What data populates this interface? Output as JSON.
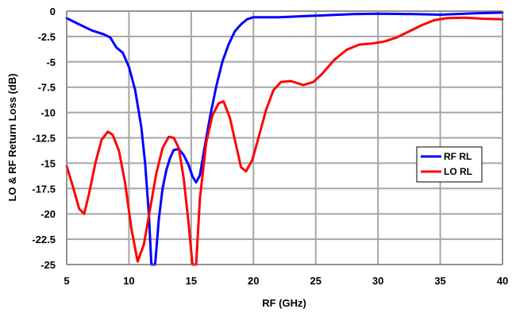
{
  "chart_data": {
    "type": "line",
    "title": "",
    "xlabel": "RF (GHz)",
    "ylabel": "LO & RF Return Loss (dB)",
    "xlim": [
      5,
      40
    ],
    "ylim": [
      -25,
      0
    ],
    "x_ticks": [
      5,
      10,
      15,
      20,
      25,
      30,
      35,
      40
    ],
    "x_tick_labels": [
      "5",
      "10",
      "15",
      "20",
      "25",
      "30",
      "35",
      "40"
    ],
    "y_ticks": [
      0,
      -2.5,
      -5,
      -7.5,
      -10,
      -12.5,
      -15,
      -17.5,
      -20,
      -22.5,
      -25
    ],
    "y_tick_labels": [
      "0",
      "-2.5",
      "-5",
      "-7.5",
      "-10",
      "-12.5",
      "-15",
      "-17.5",
      "-20",
      "-22.5",
      "-25"
    ],
    "grid": true,
    "legend_position": "right-middle",
    "series": [
      {
        "name": "RF RL",
        "color": "#0000ff",
        "points": [
          [
            5,
            -0.7
          ],
          [
            6,
            -1.3
          ],
          [
            7,
            -1.9
          ],
          [
            8,
            -2.3
          ],
          [
            8.5,
            -2.6
          ],
          [
            9,
            -3.6
          ],
          [
            9.5,
            -4.1
          ],
          [
            10,
            -5.5
          ],
          [
            10.5,
            -7.8
          ],
          [
            11,
            -11.5
          ],
          [
            11.3,
            -15
          ],
          [
            11.6,
            -20
          ],
          [
            11.8,
            -25
          ],
          [
            12.1,
            -25
          ],
          [
            12.4,
            -20.5
          ],
          [
            12.7,
            -17.5
          ],
          [
            13,
            -15.7
          ],
          [
            13.3,
            -14.5
          ],
          [
            13.6,
            -13.7
          ],
          [
            14,
            -13.6
          ],
          [
            14.4,
            -14.2
          ],
          [
            14.8,
            -15.2
          ],
          [
            15.1,
            -16.3
          ],
          [
            15.4,
            -16.9
          ],
          [
            15.7,
            -16.2
          ],
          [
            16,
            -14
          ],
          [
            16.5,
            -10.5
          ],
          [
            17,
            -7.5
          ],
          [
            17.5,
            -5
          ],
          [
            18,
            -3.3
          ],
          [
            18.5,
            -2
          ],
          [
            19,
            -1.3
          ],
          [
            19.5,
            -0.8
          ],
          [
            20,
            -0.6
          ],
          [
            22,
            -0.6
          ],
          [
            25,
            -0.45
          ],
          [
            28,
            -0.3
          ],
          [
            30,
            -0.25
          ],
          [
            33,
            -0.3
          ],
          [
            35,
            -0.35
          ],
          [
            38,
            -0.2
          ],
          [
            40,
            -0.15
          ]
        ]
      },
      {
        "name": "LO RL",
        "color": "#ff0000",
        "points": [
          [
            5,
            -15.3
          ],
          [
            5.5,
            -17.3
          ],
          [
            6,
            -19.5
          ],
          [
            6.4,
            -20
          ],
          [
            6.8,
            -18
          ],
          [
            7.3,
            -15
          ],
          [
            7.8,
            -12.7
          ],
          [
            8.3,
            -11.9
          ],
          [
            8.7,
            -12.2
          ],
          [
            9.2,
            -13.8
          ],
          [
            9.7,
            -17
          ],
          [
            10.2,
            -21.5
          ],
          [
            10.7,
            -24.7
          ],
          [
            11.2,
            -23
          ],
          [
            11.7,
            -19.5
          ],
          [
            12.2,
            -16
          ],
          [
            12.7,
            -13.5
          ],
          [
            13.2,
            -12.4
          ],
          [
            13.6,
            -12.5
          ],
          [
            14,
            -13.5
          ],
          [
            14.4,
            -16.5
          ],
          [
            14.8,
            -21
          ],
          [
            15.1,
            -25
          ],
          [
            15.4,
            -25
          ],
          [
            15.7,
            -18.5
          ],
          [
            16.2,
            -13
          ],
          [
            16.7,
            -10.3
          ],
          [
            17.2,
            -9.1
          ],
          [
            17.6,
            -8.9
          ],
          [
            18.1,
            -10.5
          ],
          [
            18.6,
            -13.2
          ],
          [
            19,
            -15.4
          ],
          [
            19.4,
            -15.8
          ],
          [
            19.9,
            -14.7
          ],
          [
            20.4,
            -12.5
          ],
          [
            21,
            -9.8
          ],
          [
            21.6,
            -7.8
          ],
          [
            22.2,
            -7
          ],
          [
            23,
            -6.9
          ],
          [
            24,
            -7.3
          ],
          [
            24.8,
            -7
          ],
          [
            25.5,
            -6.2
          ],
          [
            26.5,
            -4.8
          ],
          [
            27.5,
            -3.8
          ],
          [
            28.5,
            -3.3
          ],
          [
            29.5,
            -3.2
          ],
          [
            30.5,
            -3
          ],
          [
            31.5,
            -2.6
          ],
          [
            32.5,
            -2
          ],
          [
            33.5,
            -1.4
          ],
          [
            34.5,
            -0.9
          ],
          [
            35.5,
            -0.7
          ],
          [
            37,
            -0.65
          ],
          [
            38.5,
            -0.75
          ],
          [
            40,
            -0.8
          ]
        ]
      }
    ]
  }
}
